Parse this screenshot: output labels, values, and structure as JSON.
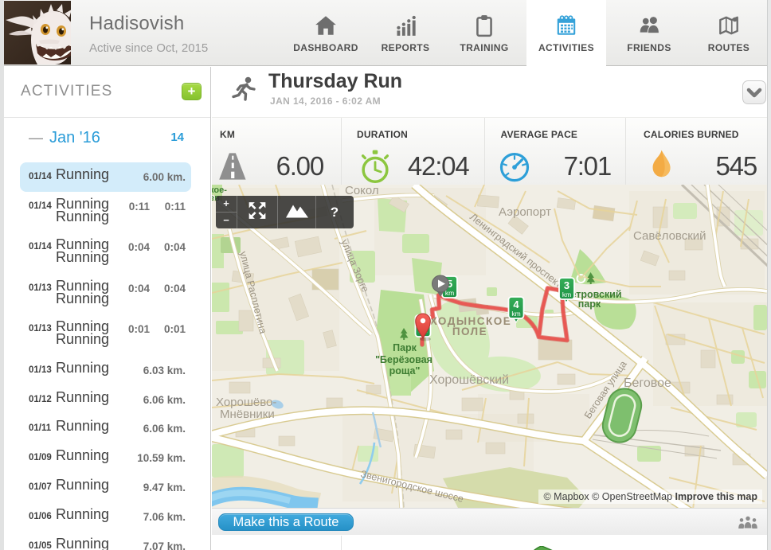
{
  "header": {
    "user_name": "Hadisovish",
    "user_subtitle": "Active since Oct, 2015",
    "nav": [
      {
        "label": "DASHBOARD",
        "icon": "home-icon"
      },
      {
        "label": "REPORTS",
        "icon": "bar-chart-icon"
      },
      {
        "label": "TRAINING",
        "icon": "clipboard-icon"
      },
      {
        "label": "ACTIVITIES",
        "icon": "calendar-icon",
        "active": true
      },
      {
        "label": "FRIENDS",
        "icon": "people-icon"
      },
      {
        "label": "ROUTES",
        "icon": "map-icon"
      }
    ]
  },
  "sidebar": {
    "title": "ACTIVITIES",
    "add_label": "+",
    "month": {
      "dash": "—",
      "label": "Jan '16",
      "count": "14"
    },
    "items": [
      {
        "date": "01/14",
        "name": "Running",
        "value": "6.00 km.",
        "selected": true
      },
      {
        "date": "01/14",
        "name": "Running",
        "name2": "Running",
        "v1": "0:11",
        "v2": "0:11"
      },
      {
        "date": "01/14",
        "name": "Running",
        "name2": "Running",
        "v1": "0:04",
        "v2": "0:04"
      },
      {
        "date": "01/13",
        "name": "Running",
        "name2": "Running",
        "v1": "0:04",
        "v2": "0:04"
      },
      {
        "date": "01/13",
        "name": "Running",
        "name2": "Running",
        "v1": "0:01",
        "v2": "0:01"
      },
      {
        "date": "01/13",
        "name": "Running",
        "value": "6.03 km."
      },
      {
        "date": "01/12",
        "name": "Running",
        "value": "6.06 km."
      },
      {
        "date": "01/11",
        "name": "Running",
        "value": "6.06 km."
      },
      {
        "date": "01/09",
        "name": "Running",
        "value": "10.59 km."
      },
      {
        "date": "01/07",
        "name": "Running",
        "value": "9.47 km."
      },
      {
        "date": "01/06",
        "name": "Running",
        "value": "7.06 km."
      },
      {
        "date": "01/05",
        "name": "Running",
        "value": "7.07 km."
      }
    ]
  },
  "activity": {
    "title": "Thursday Run",
    "datetime": "JAN 14, 2016  -  6:02 AM"
  },
  "stats": [
    {
      "label": "KM",
      "value": "6.00",
      "icon": "road-icon",
      "color": "#8f8f8f"
    },
    {
      "label": "DURATION",
      "value": "42:04",
      "icon": "stopwatch-icon",
      "color": "#8cc63f"
    },
    {
      "label": "AVERAGE PACE",
      "value": "7:01",
      "icon": "gauge-icon",
      "color": "#2d9fd8"
    },
    {
      "label": "CALORIES BURNED",
      "value": "545",
      "icon": "flame-icon",
      "color": "#f3ab44"
    }
  ],
  "map": {
    "controls": {
      "zoom_in": "+",
      "zoom_out": "−",
      "help": "?"
    },
    "labels": {
      "sokol": "Сокол",
      "aeroport": "Аэропорт",
      "savelovsky": "Савёловский",
      "khoroshevsky": "Хорошёвский",
      "khoroshevo1": "Хорошёво-",
      "khoroshevo2": "Мнёвники",
      "begovoe": "Беговое",
      "khodynskoe1": "ХОДЫНСКОЕ",
      "khodynskoe2": "ПОЛЕ",
      "park_b1": "Парк",
      "park_b2": "\"Берёзовая",
      "park_b3": "роща\"",
      "petrovsky1": "Петровский",
      "petrovsky2": "парк",
      "leningradsky": "Ленинградский проспект",
      "zvenigorodskoe": "Звенигородское шоссе",
      "begovaya": "Беговая улица",
      "zorge": "улица Зорге",
      "raspletina": "улица Расплетина",
      "edge1": "кое-",
      "edge2": "ев"
    },
    "markers": [
      {
        "num": "3",
        "unit": "km"
      },
      {
        "num": "4",
        "unit": "km"
      },
      {
        "num": "5",
        "unit": "km"
      },
      {
        "num": "",
        "unit": "km"
      }
    ],
    "attribution": {
      "text": "© Mapbox © OpenStreetMap ",
      "link": "Improve this map"
    }
  },
  "footer": {
    "route_button": "Make this a Route"
  }
}
